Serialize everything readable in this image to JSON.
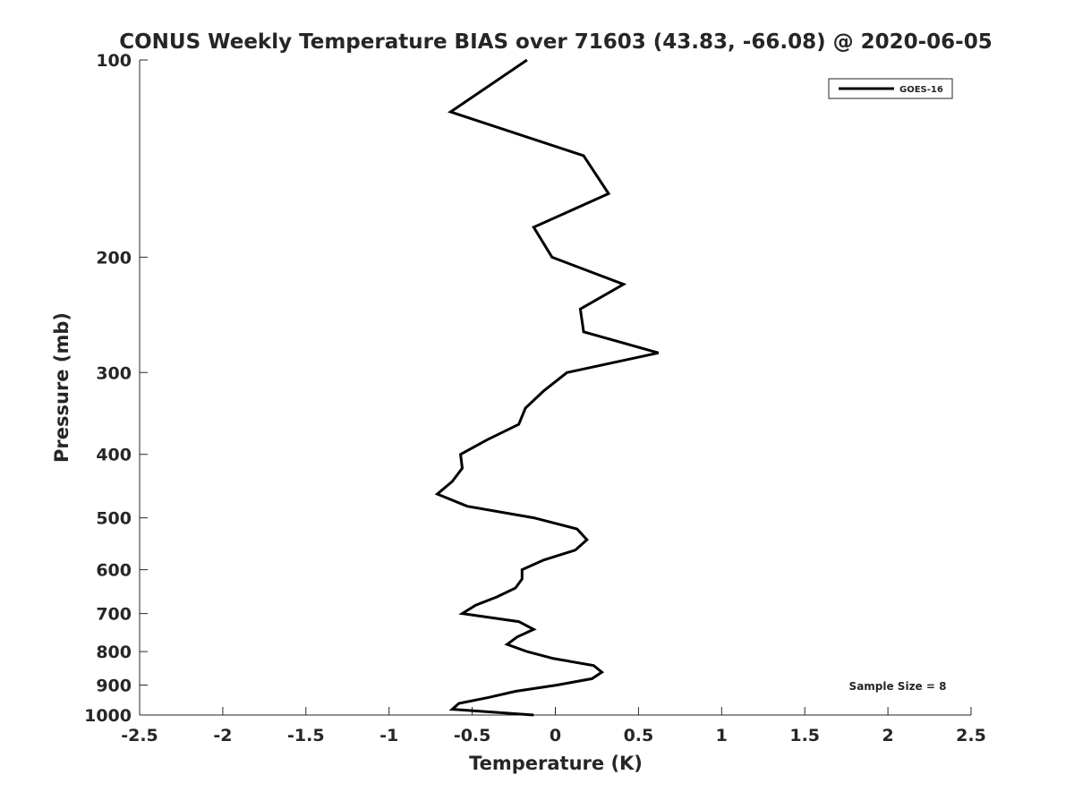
{
  "chart_data": {
    "type": "line",
    "title": "CONUS Weekly Temperature BIAS over 71603 (43.83, -66.08) @ 2020-06-05",
    "xlabel": "Temperature (K)",
    "ylabel": "Pressure (mb)",
    "xlim": [
      -2.5,
      2.5
    ],
    "ylim": [
      100,
      1000
    ],
    "yscale": "log",
    "y_reversed": true,
    "xticks": [
      "-2.5",
      "-2",
      "-1.5",
      "-1",
      "-0.5",
      "0",
      "0.5",
      "1",
      "1.5",
      "2",
      "2.5"
    ],
    "yticks": [
      "100",
      "200",
      "300",
      "400",
      "500",
      "600",
      "700",
      "800",
      "900",
      "1000"
    ],
    "grid": false,
    "legend": {
      "placement": "top-right",
      "entries": [
        "GOES-16"
      ]
    },
    "annotation": "Sample Size = 8",
    "series": [
      {
        "name": "GOES-16",
        "color": "#000000",
        "pressure": [
          100,
          120,
          140,
          160,
          180,
          200,
          220,
          240,
          260,
          280,
          300,
          320,
          340,
          360,
          380,
          400,
          420,
          440,
          460,
          480,
          500,
          520,
          540,
          560,
          580,
          600,
          620,
          640,
          660,
          680,
          700,
          720,
          740,
          760,
          780,
          800,
          820,
          840,
          860,
          880,
          900,
          920,
          940,
          960,
          980,
          1000
        ],
        "values": [
          -0.17,
          -0.63,
          0.17,
          0.32,
          -0.13,
          -0.02,
          0.41,
          0.15,
          0.17,
          0.62,
          0.07,
          -0.07,
          -0.18,
          -0.22,
          -0.41,
          -0.57,
          -0.56,
          -0.62,
          -0.71,
          -0.53,
          -0.13,
          0.13,
          0.19,
          0.12,
          -0.07,
          -0.2,
          -0.2,
          -0.24,
          -0.35,
          -0.48,
          -0.56,
          -0.22,
          -0.13,
          -0.23,
          -0.29,
          -0.17,
          -0.01,
          0.23,
          0.28,
          0.22,
          0.01,
          -0.24,
          -0.4,
          -0.58,
          -0.62,
          -0.13
        ]
      }
    ]
  }
}
